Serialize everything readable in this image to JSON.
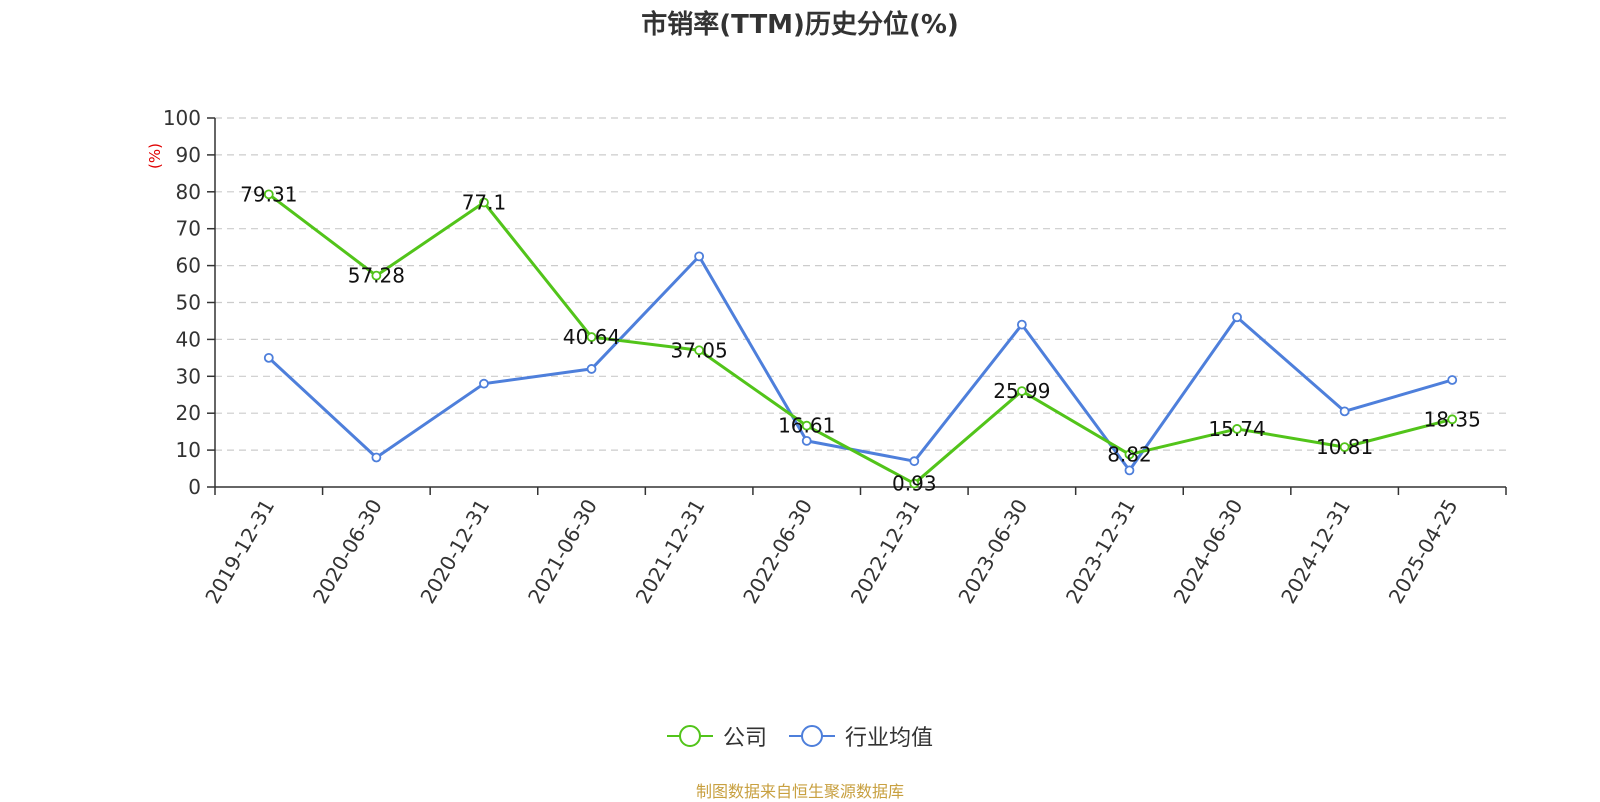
{
  "chart_data": {
    "type": "line",
    "title": "市销率(TTM)历史分位(%)",
    "ylabel": "(%)",
    "xlabel": "",
    "ylim": [
      0,
      100
    ],
    "yticks": [
      0,
      10,
      20,
      30,
      40,
      50,
      60,
      70,
      80,
      90,
      100
    ],
    "grid": true,
    "legend_position": "bottom",
    "categories": [
      "2019-12-31",
      "2020-06-30",
      "2020-12-31",
      "2021-06-30",
      "2021-12-31",
      "2022-06-30",
      "2022-12-31",
      "2023-06-30",
      "2023-12-31",
      "2024-06-30",
      "2024-12-31",
      "2025-04-25"
    ],
    "series": [
      {
        "name": "公司",
        "color": "#52c41a",
        "values": [
          79.31,
          57.28,
          77.1,
          40.64,
          37.05,
          16.61,
          0.93,
          25.99,
          8.82,
          15.74,
          10.81,
          18.35
        ],
        "labels": [
          "79.31",
          "57.28",
          "77.1",
          "40.64",
          "37.05",
          "16.61",
          "0.93",
          "25.99",
          "8.82",
          "15.74",
          "10.81",
          "18.35"
        ]
      },
      {
        "name": "行业均值",
        "color": "#4e7fdb",
        "values": [
          35,
          8,
          28,
          32,
          62.5,
          12.5,
          7,
          44,
          4.5,
          46,
          20.5,
          29
        ]
      }
    ]
  },
  "colors": {
    "axis": "#333333",
    "grid": "#cccccc",
    "ylabel": "#e00000",
    "source": "#c8a040"
  },
  "source_text": "制图数据来自恒生聚源数据库"
}
